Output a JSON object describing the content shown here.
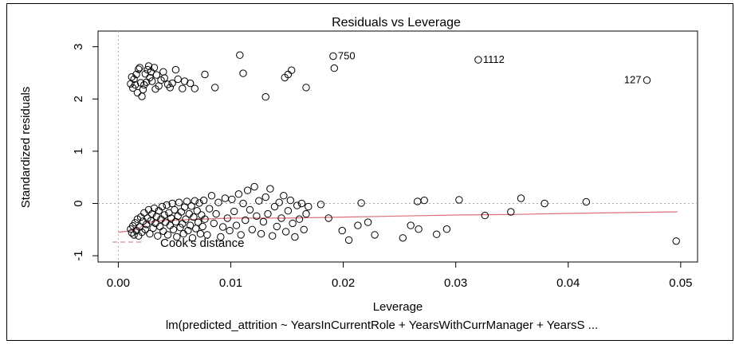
{
  "chart_data": {
    "type": "scatter",
    "title": "Residuals vs Leverage",
    "xlabel": "Leverage",
    "ylabel": "Standardized residuals",
    "subtitle": "lm(predicted_attrition ~ YearsInCurrentRole + YearsWithCurrManager + YearsS ...",
    "xlim": [
      -0.0018,
      0.0515
    ],
    "ylim": [
      -1.12,
      3.3
    ],
    "xticks": [
      0.0,
      0.01,
      0.02,
      0.03,
      0.04,
      0.05
    ],
    "xtick_labels": [
      "0.00",
      "0.01",
      "0.02",
      "0.03",
      "0.04",
      "0.05"
    ],
    "yticks": [
      -1,
      0,
      1,
      2,
      3
    ],
    "ytick_labels": [
      "-1",
      "0",
      "1",
      "2",
      "3"
    ],
    "legend": {
      "position": "bottom-left",
      "label": "Cook's distance",
      "style": "dashed red"
    },
    "reference_lines": {
      "h": 0,
      "v": 0
    },
    "labeled_points": [
      {
        "x": 0.0191,
        "y": 2.82,
        "label": "750"
      },
      {
        "x": 0.032,
        "y": 2.75,
        "label": "1112"
      },
      {
        "x": 0.047,
        "y": 2.36,
        "label": "127"
      }
    ],
    "points": [
      [
        0.0108,
        2.84
      ],
      [
        0.0111,
        2.49
      ],
      [
        0.0131,
        2.04
      ],
      [
        0.0148,
        2.41
      ],
      [
        0.0151,
        2.47
      ],
      [
        0.0154,
        2.55
      ],
      [
        0.0167,
        2.22
      ],
      [
        0.0192,
        2.59
      ],
      [
        0.0077,
        2.47
      ],
      [
        0.0086,
        2.22
      ],
      [
        0.0068,
        2.2
      ],
      [
        0.0064,
        2.3
      ],
      [
        0.0057,
        2.2
      ],
      [
        0.0051,
        2.56
      ],
      [
        0.0048,
        2.3
      ],
      [
        0.0011,
        2.29
      ],
      [
        0.0014,
        2.38
      ],
      [
        0.0016,
        2.47
      ],
      [
        0.0018,
        2.57
      ],
      [
        0.002,
        2.31
      ],
      [
        0.0022,
        2.18
      ],
      [
        0.0024,
        2.48
      ],
      [
        0.0026,
        2.56
      ],
      [
        0.0028,
        2.41
      ],
      [
        0.003,
        2.34
      ],
      [
        0.0032,
        2.6
      ],
      [
        0.0034,
        2.46
      ],
      [
        0.0036,
        2.25
      ],
      [
        0.0038,
        2.36
      ],
      [
        0.004,
        2.52
      ],
      [
        0.0013,
        2.21
      ],
      [
        0.0017,
        2.12
      ],
      [
        0.0021,
        2.05
      ],
      [
        0.0025,
        2.32
      ],
      [
        0.0029,
        2.52
      ],
      [
        0.0033,
        2.19
      ],
      [
        0.0019,
        2.6
      ],
      [
        0.0023,
        2.27
      ],
      [
        0.0027,
        2.63
      ],
      [
        0.0041,
        2.4
      ],
      [
        0.0044,
        2.28
      ],
      [
        0.0012,
        2.42
      ],
      [
        0.0015,
        2.27
      ],
      [
        0.0046,
        2.22
      ],
      [
        0.0053,
        2.38
      ],
      [
        0.0059,
        2.34
      ],
      [
        0.0011,
        -0.49
      ],
      [
        0.0012,
        -0.56
      ],
      [
        0.0013,
        -0.43
      ],
      [
        0.0014,
        -0.6
      ],
      [
        0.0015,
        -0.37
      ],
      [
        0.0016,
        -0.52
      ],
      [
        0.0017,
        -0.3
      ],
      [
        0.0018,
        -0.62
      ],
      [
        0.0019,
        -0.45
      ],
      [
        0.002,
        -0.26
      ],
      [
        0.0021,
        -0.55
      ],
      [
        0.0022,
        -0.34
      ],
      [
        0.0023,
        -0.18
      ],
      [
        0.0024,
        -0.5
      ],
      [
        0.0025,
        -0.4
      ],
      [
        0.0026,
        -0.28
      ],
      [
        0.0027,
        -0.12
      ],
      [
        0.0028,
        -0.58
      ],
      [
        0.0029,
        -0.33
      ],
      [
        0.003,
        -0.2
      ],
      [
        0.0031,
        -0.47
      ],
      [
        0.0032,
        -0.09
      ],
      [
        0.0033,
        -0.38
      ],
      [
        0.0034,
        -0.25
      ],
      [
        0.0035,
        -0.62
      ],
      [
        0.0036,
        -0.14
      ],
      [
        0.0037,
        -0.44
      ],
      [
        0.0038,
        -0.3
      ],
      [
        0.0039,
        -0.06
      ],
      [
        0.004,
        -0.53
      ],
      [
        0.0041,
        -0.22
      ],
      [
        0.0042,
        -0.36
      ],
      [
        0.0043,
        -0.03
      ],
      [
        0.0044,
        -0.6
      ],
      [
        0.0045,
        -0.18
      ],
      [
        0.0046,
        -0.42
      ],
      [
        0.0047,
        -0.28
      ],
      [
        0.0048,
        0.0
      ],
      [
        0.0049,
        -0.5
      ],
      [
        0.005,
        -0.12
      ],
      [
        0.0051,
        -0.35
      ],
      [
        0.0052,
        -0.64
      ],
      [
        0.0053,
        -0.24
      ],
      [
        0.0054,
        0.02
      ],
      [
        0.0055,
        -0.46
      ],
      [
        0.0056,
        -0.16
      ],
      [
        0.0057,
        -0.39
      ],
      [
        0.0058,
        -0.58
      ],
      [
        0.0059,
        -0.07
      ],
      [
        0.006,
        -0.3
      ],
      [
        0.0061,
        0.04
      ],
      [
        0.0062,
        -0.52
      ],
      [
        0.0063,
        -0.2
      ],
      [
        0.0064,
        -0.42
      ],
      [
        0.0065,
        -0.05
      ],
      [
        0.0066,
        -0.66
      ],
      [
        0.0067,
        -0.26
      ],
      [
        0.0068,
        0.05
      ],
      [
        0.0069,
        -0.48
      ],
      [
        0.007,
        -0.14
      ],
      [
        0.0071,
        -0.36
      ],
      [
        0.0072,
        0.01
      ],
      [
        0.0073,
        -0.58
      ],
      [
        0.0074,
        -0.22
      ],
      [
        0.0075,
        -0.44
      ],
      [
        0.0076,
        0.06
      ],
      [
        0.0077,
        -0.3
      ],
      [
        0.0079,
        -0.6
      ],
      [
        0.0081,
        -0.1
      ],
      [
        0.0083,
        0.15
      ],
      [
        0.0085,
        -0.38
      ],
      [
        0.0087,
        -0.2
      ],
      [
        0.0089,
        0.02
      ],
      [
        0.0091,
        -0.64
      ],
      [
        0.0093,
        -0.45
      ],
      [
        0.0095,
        0.1
      ],
      [
        0.0097,
        -0.28
      ],
      [
        0.0099,
        -0.52
      ],
      [
        0.0101,
        0.08
      ],
      [
        0.0103,
        -0.15
      ],
      [
        0.0105,
        -0.42
      ],
      [
        0.0107,
        0.18
      ],
      [
        0.0109,
        -0.6
      ],
      [
        0.0111,
        0.0
      ],
      [
        0.0113,
        -0.32
      ],
      [
        0.0115,
        0.25
      ],
      [
        0.0117,
        -0.12
      ],
      [
        0.0119,
        -0.5
      ],
      [
        0.0121,
        0.32
      ],
      [
        0.0123,
        -0.24
      ],
      [
        0.0125,
        0.05
      ],
      [
        0.0127,
        -0.58
      ],
      [
        0.0129,
        -0.35
      ],
      [
        0.0131,
        0.12
      ],
      [
        0.0133,
        -0.2
      ],
      [
        0.0135,
        0.28
      ],
      [
        0.0137,
        -0.62
      ],
      [
        0.0139,
        -0.06
      ],
      [
        0.0141,
        -0.44
      ],
      [
        0.0143,
        0.02
      ],
      [
        0.0145,
        -0.28
      ],
      [
        0.0147,
        0.15
      ],
      [
        0.0149,
        -0.54
      ],
      [
        0.0151,
        -0.14
      ],
      [
        0.0153,
        0.06
      ],
      [
        0.0155,
        -0.38
      ],
      [
        0.0157,
        -0.64
      ],
      [
        0.0159,
        -0.04
      ],
      [
        0.0161,
        -0.3
      ],
      [
        0.0163,
        0.0
      ],
      [
        0.0165,
        -0.5
      ],
      [
        0.0167,
        -0.2
      ],
      [
        0.0169,
        -0.06
      ],
      [
        0.018,
        -0.02
      ],
      [
        0.0187,
        -0.28
      ],
      [
        0.0199,
        -0.52
      ],
      [
        0.0205,
        -0.7
      ],
      [
        0.0213,
        -0.42
      ],
      [
        0.0216,
        0.01
      ],
      [
        0.0222,
        -0.36
      ],
      [
        0.0228,
        -0.6
      ],
      [
        0.0253,
        -0.66
      ],
      [
        0.026,
        -0.42
      ],
      [
        0.0266,
        0.04
      ],
      [
        0.0267,
        -0.49
      ],
      [
        0.0272,
        0.06
      ],
      [
        0.0283,
        -0.59
      ],
      [
        0.0292,
        -0.49
      ],
      [
        0.0303,
        0.07
      ],
      [
        0.0326,
        -0.23
      ],
      [
        0.0349,
        -0.16
      ],
      [
        0.0358,
        0.1
      ],
      [
        0.0379,
        0.0
      ],
      [
        0.0416,
        0.03
      ],
      [
        0.0496,
        -0.72
      ]
    ],
    "cooks_line": [
      [
        0.0,
        -0.55
      ],
      [
        0.0012,
        -0.52
      ],
      [
        0.0018,
        -0.48
      ],
      [
        0.0025,
        -0.37
      ],
      [
        0.0035,
        -0.33
      ],
      [
        0.006,
        -0.31
      ],
      [
        0.01,
        -0.28
      ],
      [
        0.015,
        -0.28
      ],
      [
        0.02,
        -0.26
      ],
      [
        0.025,
        -0.24
      ],
      [
        0.03,
        -0.22
      ],
      [
        0.035,
        -0.21
      ],
      [
        0.04,
        -0.19
      ],
      [
        0.0497,
        -0.16
      ]
    ]
  }
}
